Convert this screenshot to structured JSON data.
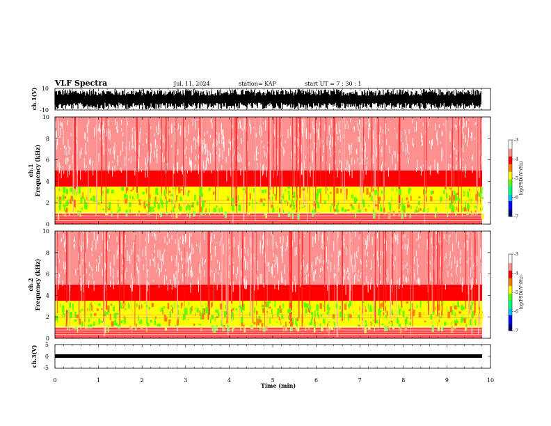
{
  "header": {
    "title": "VLF Spectra",
    "date": "Jul. 11, 2024",
    "station": "station= KAP",
    "start": "start  UT =   7 : 30 : 1"
  },
  "panels": {
    "ch1_waveform": {
      "ylabel": "ch.1(V)"
    },
    "ch1_spectrogram": {
      "ylabel_ch": "ch.1",
      "ylabel": "Frequency (kHz)"
    },
    "ch2_spectrogram": {
      "ylabel_ch": "ch.2",
      "ylabel": "Frequency (kHz)"
    },
    "ch3_waveform": {
      "ylabel": "ch.3(V)"
    }
  },
  "colorbar": {
    "label": "log(PSD)(V²/Hz)",
    "ticks": [
      "-3",
      "-4",
      "-5",
      "-6",
      "-7"
    ],
    "range": [
      -7,
      -3
    ],
    "colors": [
      "#00007a",
      "#0000ff",
      "#00c0ff",
      "#00ff80",
      "#60ff00",
      "#ffff00",
      "#ff8000",
      "#ff0000",
      "#ff9090",
      "#ffffff"
    ]
  },
  "chart_data": [
    {
      "type": "line",
      "title": "VLF Spectra",
      "xlabel": "",
      "ylabel": "ch.1(V)",
      "ylim": [
        -10,
        10
      ],
      "yticks": [
        "10",
        "-10"
      ],
      "xlim": [
        0,
        10
      ],
      "description_values": {
        "typical_min": -10,
        "typical_max": 10
      }
    },
    {
      "type": "heatmap",
      "xlabel": "",
      "ylabel": "Frequency (kHz)",
      "xlim": [
        0,
        10
      ],
      "ylim": [
        0,
        10
      ],
      "yticks": [
        "0",
        "2",
        "4",
        "6",
        "8",
        "10"
      ],
      "colorscale_range": [
        -7,
        -3
      ],
      "bands": [
        {
          "f_from": 0.0,
          "f_to": 1.0,
          "log_psd": -4.0
        },
        {
          "f_from": 1.0,
          "f_to": 3.5,
          "log_psd": -4.8
        },
        {
          "f_from": 3.5,
          "f_to": 5.0,
          "log_psd": -4.2
        },
        {
          "f_from": 5.0,
          "f_to": 10.0,
          "log_psd": -3.5
        }
      ]
    },
    {
      "type": "heatmap",
      "xlabel": "",
      "ylabel": "Frequency (kHz)",
      "xlim": [
        0,
        10
      ],
      "ylim": [
        0,
        10
      ],
      "yticks": [
        "0",
        "2",
        "4",
        "6",
        "8",
        "10"
      ],
      "colorscale_range": [
        -7,
        -3
      ],
      "bands": [
        {
          "f_from": 0.0,
          "f_to": 1.0,
          "log_psd": -4.0
        },
        {
          "f_from": 1.0,
          "f_to": 3.5,
          "log_psd": -5.0
        },
        {
          "f_from": 3.5,
          "f_to": 5.0,
          "log_psd": -4.2
        },
        {
          "f_from": 5.0,
          "f_to": 10.0,
          "log_psd": -3.5
        }
      ]
    },
    {
      "type": "line",
      "xlabel": "Time (min)",
      "ylabel": "ch.3(V)",
      "xlim": [
        0,
        10
      ],
      "ylim": [
        -5,
        5
      ],
      "yticks": [
        "5",
        "0",
        "-5"
      ],
      "xticks": [
        "0",
        "1",
        "2",
        "3",
        "4",
        "5",
        "6",
        "7",
        "8",
        "9",
        "10"
      ],
      "description_values": {
        "typical_min": -0.5,
        "typical_max": 0.5
      }
    }
  ]
}
